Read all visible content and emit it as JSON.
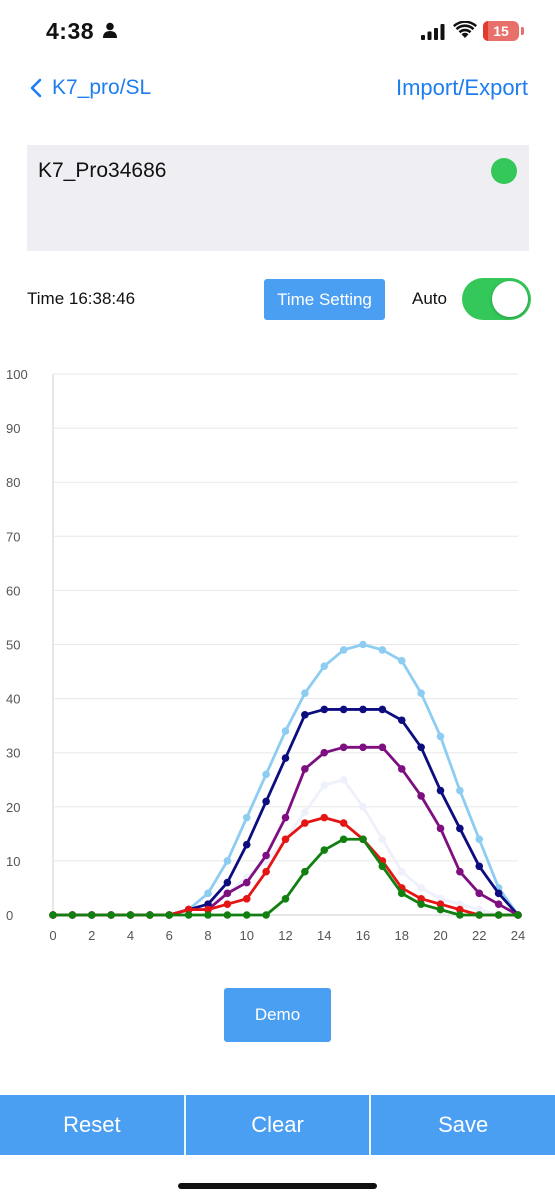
{
  "status_bar": {
    "time": "4:38",
    "battery": "15",
    "battery_level": 0.15
  },
  "nav": {
    "back_label": "K7_pro/SL",
    "action_label": "Import/Export"
  },
  "device": {
    "name": "K7_Pro34686",
    "connected_color": "#34c759"
  },
  "controls": {
    "time_label": "Time 16:38:46",
    "time_setting_label": "Time Setting",
    "auto_label": "Auto",
    "auto_on": true
  },
  "chart_data": {
    "type": "line",
    "title": "",
    "xlabel": "",
    "ylabel": "",
    "xlim": [
      0,
      24
    ],
    "ylim": [
      0,
      100
    ],
    "grid": true,
    "x_ticks": [
      "0",
      "2",
      "4",
      "6",
      "8",
      "10",
      "12",
      "14",
      "16",
      "18",
      "20",
      "22",
      "24"
    ],
    "y_ticks": [
      "0",
      "10",
      "20",
      "30",
      "40",
      "50",
      "60",
      "70",
      "80",
      "90",
      "100"
    ],
    "x": [
      0,
      1,
      2,
      3,
      4,
      5,
      6,
      7,
      8,
      9,
      10,
      11,
      12,
      13,
      14,
      15,
      16,
      17,
      18,
      19,
      20,
      21,
      22,
      23,
      24
    ],
    "series": [
      {
        "color": "#eef0fb",
        "values": [
          0,
          0,
          0,
          0,
          0,
          0,
          0,
          1,
          2,
          4,
          7,
          10,
          14,
          19,
          24,
          25,
          20,
          14,
          8,
          5,
          3,
          2,
          1,
          0,
          0
        ]
      },
      {
        "color": "#8ecdf2",
        "values": [
          0,
          0,
          0,
          0,
          0,
          0,
          0,
          1,
          4,
          10,
          18,
          26,
          34,
          41,
          46,
          49,
          50,
          49,
          47,
          41,
          33,
          23,
          14,
          5,
          0
        ]
      },
      {
        "color": "#0d0d80",
        "values": [
          0,
          0,
          0,
          0,
          0,
          0,
          0,
          1,
          2,
          6,
          13,
          21,
          29,
          37,
          38,
          38,
          38,
          38,
          36,
          31,
          23,
          16,
          9,
          4,
          0
        ]
      },
      {
        "color": "#7d0f80",
        "values": [
          0,
          0,
          0,
          0,
          0,
          0,
          0,
          1,
          1,
          4,
          6,
          11,
          18,
          27,
          30,
          31,
          31,
          31,
          27,
          22,
          16,
          8,
          4,
          2,
          0
        ]
      },
      {
        "color": "#e51515",
        "values": [
          0,
          0,
          0,
          0,
          0,
          0,
          0,
          1,
          1,
          2,
          3,
          8,
          14,
          17,
          18,
          17,
          14,
          10,
          5,
          3,
          2,
          1,
          0,
          0,
          0
        ]
      },
      {
        "color": "#118011",
        "values": [
          0,
          0,
          0,
          0,
          0,
          0,
          0,
          0,
          0,
          0,
          0,
          0,
          3,
          8,
          12,
          14,
          14,
          9,
          4,
          2,
          1,
          0,
          0,
          0,
          0
        ]
      }
    ]
  },
  "demo_label": "Demo",
  "bottom_bar": {
    "reset_label": "Reset",
    "clear_label": "Clear",
    "save_label": "Save"
  }
}
